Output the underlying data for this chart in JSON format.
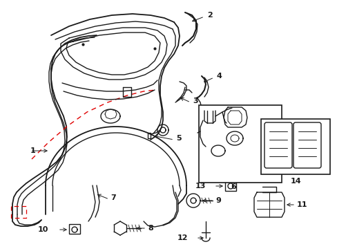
{
  "bg_color": "#ffffff",
  "line_color": "#1a1a1a",
  "dashed_color": "#e00000",
  "lw": 1.0,
  "fs_label": 8.0
}
